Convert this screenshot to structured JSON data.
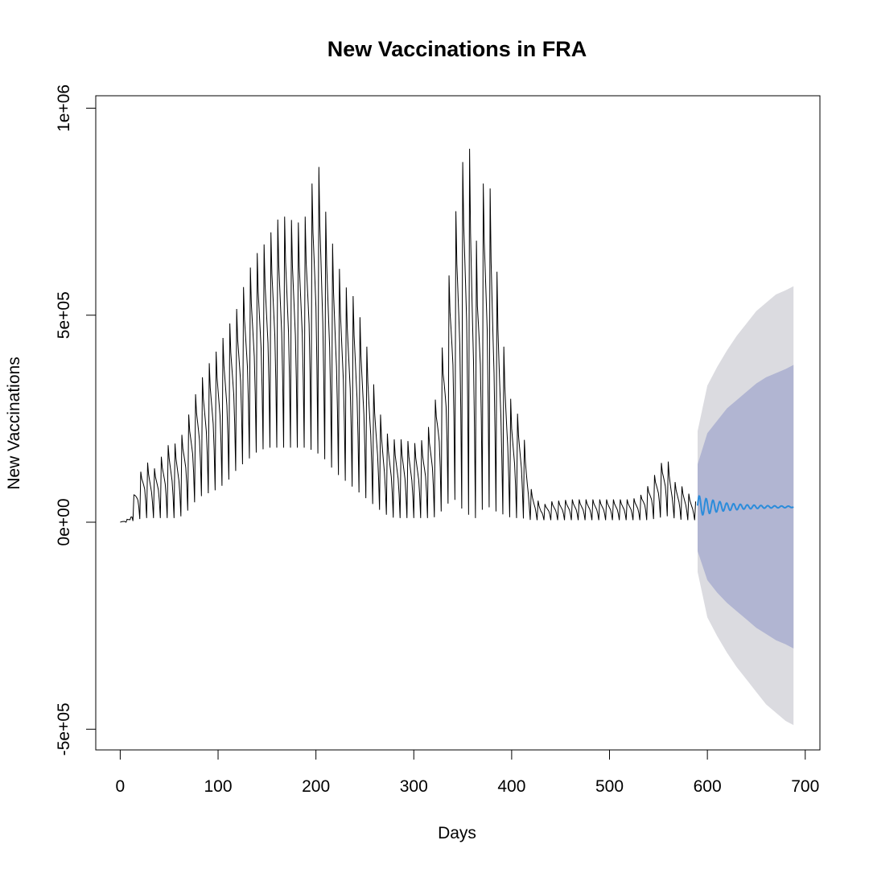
{
  "chart_data": {
    "type": "line",
    "title": "New Vaccinations in FRA",
    "xlabel": "Days",
    "ylabel": "New Vaccinations",
    "xlim": [
      -25,
      715
    ],
    "ylim": [
      -550000,
      1030000
    ],
    "x_ticks": [
      0,
      100,
      200,
      300,
      400,
      500,
      600,
      700
    ],
    "x_tick_labels": [
      "0",
      "100",
      "200",
      "300",
      "400",
      "500",
      "600",
      "700"
    ],
    "y_ticks": [
      -500000,
      0,
      500000,
      1000000
    ],
    "y_tick_labels": [
      "-5e+05",
      "0e+00",
      "5e+05",
      "1e+06"
    ],
    "grid": false,
    "colors": {
      "observed": "#000000",
      "forecast": "#2b8cdb",
      "band_95": "#dbdbe0",
      "band_80": "#b1b5d2"
    },
    "observed_envelope": {
      "period_days": 7,
      "x": [
        0,
        10,
        15,
        25,
        35,
        50,
        60,
        70,
        80,
        90,
        100,
        110,
        120,
        130,
        140,
        150,
        160,
        170,
        180,
        190,
        200,
        205,
        210,
        220,
        230,
        240,
        250,
        260,
        270,
        280,
        290,
        300,
        310,
        320,
        330,
        340,
        350,
        355,
        360,
        365,
        370,
        375,
        380,
        390,
        400,
        410,
        420,
        430,
        440,
        460,
        480,
        500,
        520,
        530,
        540,
        550,
        558,
        565,
        575,
        588
      ],
      "peak": [
        0,
        10000,
        80000,
        150000,
        130000,
        190000,
        190000,
        260000,
        330000,
        380000,
        420000,
        470000,
        520000,
        600000,
        650000,
        680000,
        730000,
        740000,
        720000,
        740000,
        870000,
        850000,
        750000,
        640000,
        570000,
        540000,
        450000,
        320000,
        220000,
        200000,
        200000,
        190000,
        200000,
        260000,
        440000,
        700000,
        870000,
        970000,
        800000,
        650000,
        800000,
        890000,
        750000,
        460000,
        280000,
        250000,
        80000,
        40000,
        50000,
        55000,
        55000,
        55000,
        55000,
        60000,
        90000,
        130000,
        165000,
        100000,
        85000,
        50000
      ],
      "trough": [
        0,
        0,
        5000,
        10000,
        10000,
        10000,
        10000,
        30000,
        60000,
        70000,
        80000,
        100000,
        130000,
        150000,
        170000,
        180000,
        180000,
        180000,
        180000,
        180000,
        170000,
        160000,
        150000,
        120000,
        100000,
        80000,
        60000,
        40000,
        20000,
        10000,
        10000,
        10000,
        10000,
        10000,
        30000,
        60000,
        30000,
        20000,
        10000,
        10000,
        30000,
        40000,
        30000,
        20000,
        10000,
        10000,
        5000,
        5000,
        5000,
        5000,
        5000,
        5000,
        5000,
        5000,
        5000,
        10000,
        15000,
        10000,
        5000,
        5000
      ]
    },
    "forecast": {
      "x": [
        590,
        600,
        610,
        620,
        630,
        640,
        650,
        660,
        670,
        680,
        688
      ],
      "mean": [
        40000,
        38000,
        38000,
        37000,
        37000,
        37000,
        37000,
        37000,
        37000,
        37000,
        37000
      ],
      "oscillation_amplitude": [
        25000,
        18000,
        13000,
        9000,
        7000,
        5000,
        4000,
        3000,
        2500,
        2000,
        1500
      ],
      "lower_80": [
        -70000,
        -140000,
        -170000,
        -195000,
        -215000,
        -235000,
        -255000,
        -270000,
        -285000,
        -295000,
        -305000
      ],
      "upper_80": [
        140000,
        215000,
        245000,
        275000,
        295000,
        315000,
        335000,
        350000,
        360000,
        370000,
        380000
      ],
      "lower_95": [
        -120000,
        -230000,
        -275000,
        -315000,
        -350000,
        -380000,
        -410000,
        -440000,
        -460000,
        -480000,
        -490000
      ],
      "upper_95": [
        220000,
        330000,
        375000,
        415000,
        450000,
        480000,
        510000,
        530000,
        550000,
        560000,
        570000
      ]
    }
  }
}
